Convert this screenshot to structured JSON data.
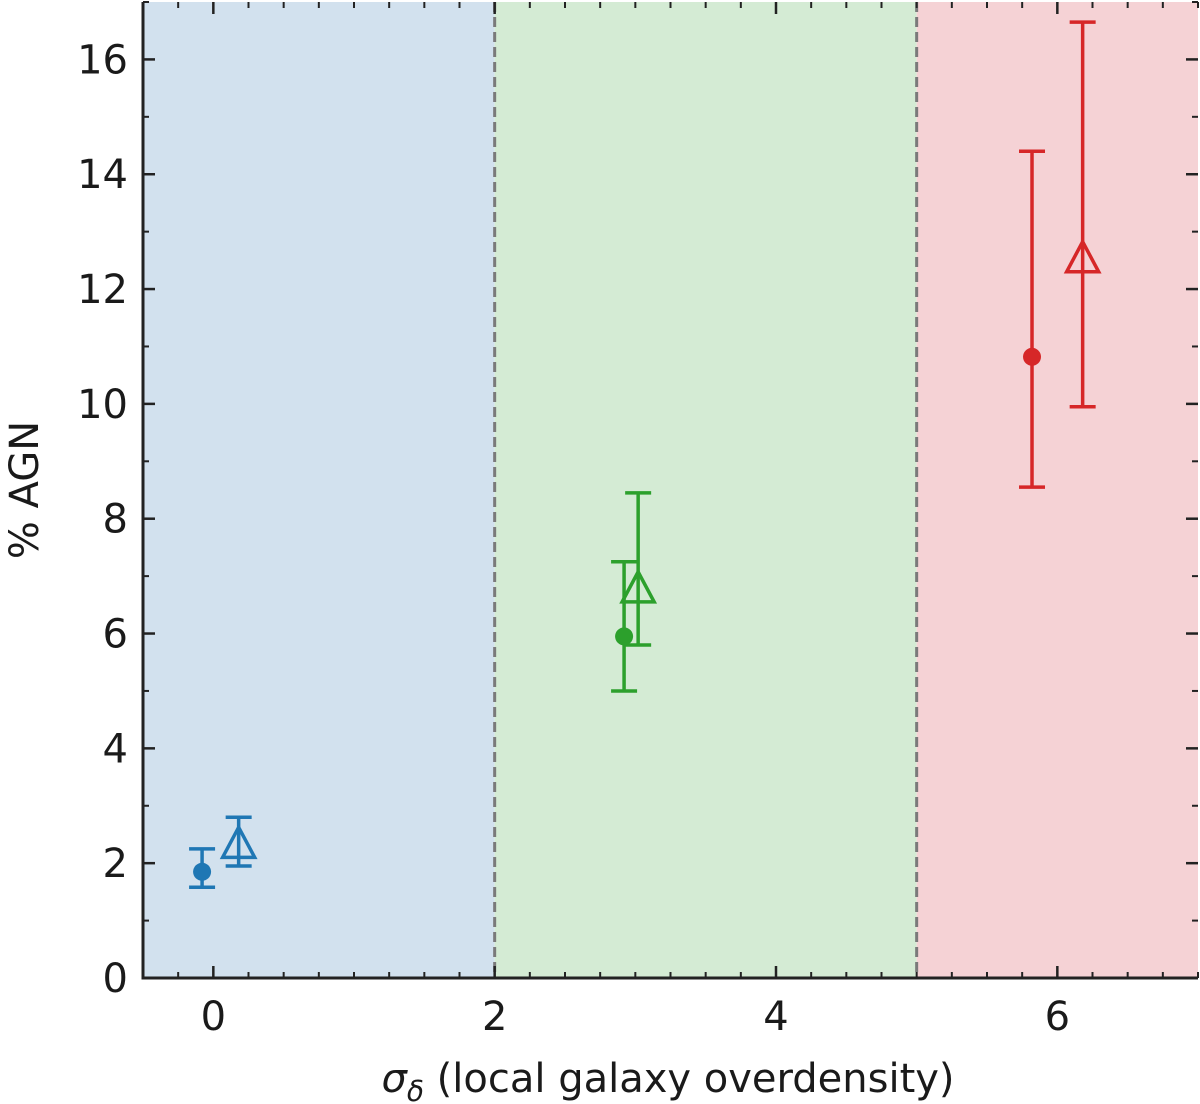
{
  "chart_data": {
    "type": "scatter",
    "title": "",
    "xlabel": {
      "symbol": "σ",
      "subscript": "δ",
      "text": " (local galaxy overdensity)"
    },
    "ylabel": "% AGN",
    "xlim": [
      -0.5,
      7.0
    ],
    "ylim": [
      0,
      17.0
    ],
    "x_ticks": [
      0,
      2,
      4,
      6
    ],
    "y_ticks": [
      0,
      2,
      4,
      6,
      8,
      10,
      12,
      14,
      16
    ],
    "x_minor_step": 0.25,
    "y_minor_step": 1,
    "grid": false,
    "legend": "none",
    "regions": [
      {
        "x0": -0.5,
        "x1": 2.0,
        "color": "#d2e1ee"
      },
      {
        "x0": 2.0,
        "x1": 5.0,
        "color": "#d4ebd4"
      },
      {
        "x0": 5.0,
        "x1": 7.0,
        "color": "#f5d2d5"
      }
    ],
    "boundaries": [
      2.0,
      5.0
    ],
    "boundary_color": "#7a7a7a",
    "series": [
      {
        "marker": "circle",
        "points": [
          {
            "x": -0.08,
            "y": 1.85,
            "ylow": 1.58,
            "yhigh": 2.25,
            "color": "#1f77b4"
          },
          {
            "x": 2.92,
            "y": 5.95,
            "ylow": 5.0,
            "yhigh": 7.25,
            "color": "#2ca02c"
          },
          {
            "x": 5.82,
            "y": 10.82,
            "ylow": 8.55,
            "yhigh": 14.4,
            "color": "#d62728"
          }
        ]
      },
      {
        "marker": "triangle-open",
        "points": [
          {
            "x": 0.18,
            "y": 2.3,
            "ylow": 1.95,
            "yhigh": 2.8,
            "color": "#1f77b4"
          },
          {
            "x": 3.02,
            "y": 6.75,
            "ylow": 5.8,
            "yhigh": 8.45,
            "color": "#2ca02c"
          },
          {
            "x": 6.18,
            "y": 12.5,
            "ylow": 9.95,
            "yhigh": 16.65,
            "color": "#d62728"
          }
        ]
      }
    ]
  }
}
